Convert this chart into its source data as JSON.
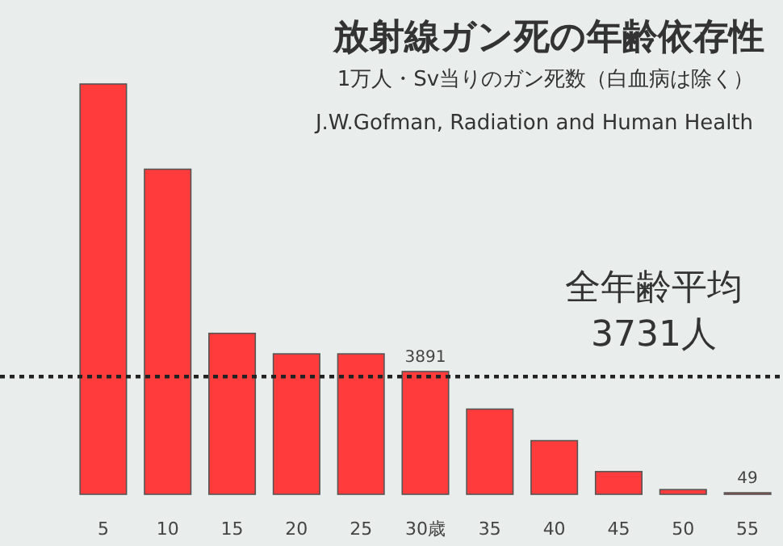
{
  "chart_data": {
    "type": "bar",
    "title": "放射線ガン死の年齢依存性",
    "subtitle": "1万人・Sv当りのガン死数（白血病は除く）",
    "annotations": [
      "J.W.Gofman, Radiation and Human Health"
    ],
    "categories": [
      "5",
      "10",
      "15",
      "20",
      "25",
      "30歳",
      "35",
      "40",
      "45",
      "50",
      "55"
    ],
    "values": [
      13000,
      10300,
      5100,
      4450,
      4450,
      3891,
      2700,
      1700,
      720,
      150,
      49
    ],
    "value_labels": [
      null,
      null,
      null,
      null,
      null,
      "3891",
      null,
      null,
      null,
      null,
      "49"
    ],
    "color": "#ff3b3b",
    "ref_lines": [
      {
        "axis": "y",
        "value": 3731,
        "label": "全年齢平均\n3731人",
        "color": "#222222",
        "line_style": "dotted"
      }
    ],
    "legend": false
  }
}
